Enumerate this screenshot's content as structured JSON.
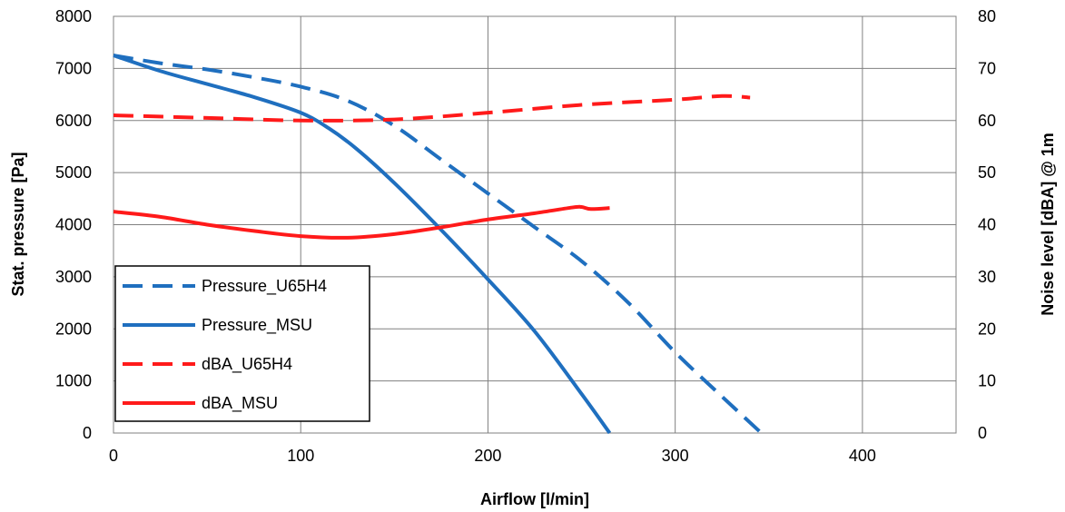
{
  "chart_data": {
    "type": "line",
    "title": "",
    "xlabel": "Airflow [l/min]",
    "ylabel": "Stat. pressure  [Pa]",
    "y2label": "Noise level  [dBA] @ 1m",
    "xlim": [
      0,
      450
    ],
    "ylim": [
      0,
      8000
    ],
    "y2lim": [
      0,
      80
    ],
    "x_ticks": [
      "0",
      "100",
      "200",
      "300",
      "400"
    ],
    "y_ticks": [
      "0",
      "1000",
      "2000",
      "3000",
      "4000",
      "5000",
      "6000",
      "7000",
      "8000"
    ],
    "y2_ticks": [
      "0",
      "10",
      "20",
      "30",
      "40",
      "50",
      "60",
      "70",
      "80"
    ],
    "grid": true,
    "legend_position": "bottom-left",
    "series": [
      {
        "name": "Pressure_U65H4",
        "axis": "left",
        "color": "#1f6fbf",
        "dashed": true,
        "x": [
          0,
          25,
          50,
          75,
          100,
          125,
          150,
          175,
          200,
          225,
          250,
          275,
          300,
          325,
          346
        ],
        "y": [
          7250,
          7100,
          6980,
          6830,
          6650,
          6380,
          5900,
          5250,
          4600,
          3950,
          3300,
          2500,
          1550,
          700,
          0
        ]
      },
      {
        "name": "Pressure_MSU",
        "axis": "left",
        "color": "#1f6fbf",
        "dashed": false,
        "x": [
          0,
          25,
          50,
          75,
          100,
          115,
          130,
          150,
          175,
          200,
          225,
          250,
          265
        ],
        "y": [
          7250,
          6950,
          6700,
          6450,
          6150,
          5850,
          5450,
          4800,
          3900,
          2950,
          1950,
          750,
          0
        ]
      },
      {
        "name": "dBA_U65H4",
        "axis": "right",
        "color": "#ff1a1a",
        "dashed": true,
        "x": [
          0,
          50,
          100,
          150,
          200,
          250,
          300,
          325,
          340
        ],
        "y": [
          61,
          60.5,
          60,
          60.2,
          61.5,
          63,
          64,
          64.7,
          64.4
        ]
      },
      {
        "name": "dBA_MSU",
        "axis": "right",
        "color": "#ff1a1a",
        "dashed": false,
        "x": [
          0,
          25,
          50,
          75,
          100,
          125,
          150,
          175,
          200,
          225,
          245,
          250,
          255,
          265
        ],
        "y": [
          42.5,
          41.5,
          40,
          38.8,
          37.8,
          37.5,
          38.2,
          39.5,
          41,
          42.2,
          43.3,
          43.4,
          43.0,
          43.2
        ]
      }
    ]
  }
}
